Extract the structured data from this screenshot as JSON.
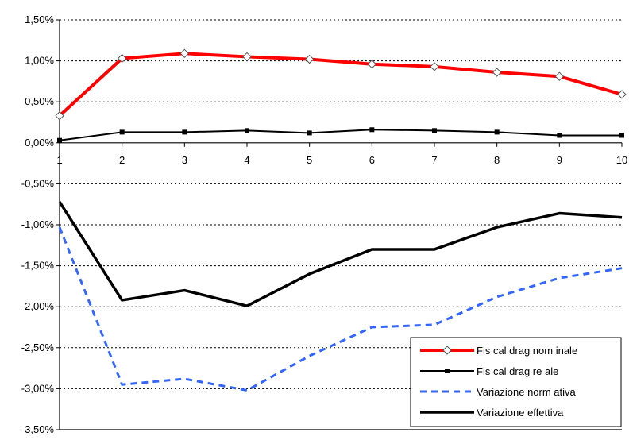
{
  "chart_data": {
    "type": "line",
    "x": [
      1,
      2,
      3,
      4,
      5,
      6,
      7,
      8,
      9,
      10
    ],
    "ylim": [
      -3.5,
      1.5
    ],
    "ytick_values": [
      1.5,
      1.0,
      0.5,
      0.0,
      -0.5,
      -1.0,
      -1.5,
      -2.0,
      -2.5,
      -3.0,
      -3.5
    ],
    "ytick_labels": [
      "1,50%",
      "1,00%",
      "0,50%",
      "0,00%",
      "-0,50%",
      "-1,00%",
      "-1,50%",
      "-2,00%",
      "-2,50%",
      "-3,00%",
      "-3,50%"
    ],
    "xtick_labels": [
      "1",
      "2",
      "3",
      "4",
      "5",
      "6",
      "7",
      "8",
      "9",
      "10"
    ],
    "grid": "horizontal dotted",
    "legend_position": "bottom-right",
    "series": [
      {
        "name": "Fis cal drag nom inale",
        "color": "#ff0000",
        "style": "thick-solid-diamond",
        "values": [
          0.33,
          1.03,
          1.09,
          1.05,
          1.02,
          0.96,
          0.93,
          0.86,
          0.81,
          0.59
        ]
      },
      {
        "name": "Fis cal drag re ale",
        "color": "#000000",
        "style": "thin-solid-square",
        "values": [
          0.03,
          0.13,
          0.13,
          0.15,
          0.12,
          0.16,
          0.15,
          0.13,
          0.09,
          0.09
        ]
      },
      {
        "name": "Variazione norm ativa",
        "color": "#3366ff",
        "style": "dashed",
        "values": [
          -1.03,
          -2.95,
          -2.88,
          -3.02,
          -2.6,
          -2.25,
          -2.22,
          -1.88,
          -1.65,
          -1.53
        ]
      },
      {
        "name": "Variazione effettiva",
        "color": "#000000",
        "style": "thick-solid",
        "values": [
          -0.72,
          -1.92,
          -1.8,
          -1.99,
          -1.6,
          -1.3,
          -1.3,
          -1.03,
          -0.86,
          -0.91
        ]
      }
    ]
  }
}
